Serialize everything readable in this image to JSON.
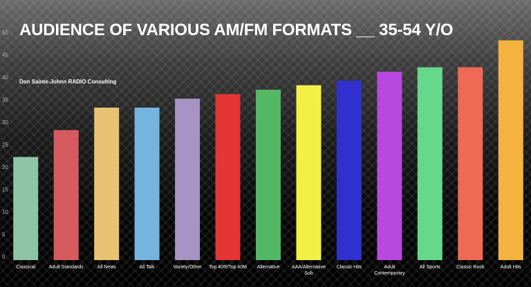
{
  "chart_data": {
    "type": "bar",
    "title": "AUDIENCE OF VARIOUS AM/FM FORMATS __ 35-54 Y/O",
    "subtitle": "Don Sainte-Johnn RADIO Consulting",
    "xlabel": "",
    "ylabel": "",
    "ylim": [
      0,
      50
    ],
    "yticks": [
      0,
      5,
      10,
      15,
      20,
      25,
      30,
      35,
      40,
      45,
      50
    ],
    "grid": false,
    "categories": [
      [
        "Classical"
      ],
      [
        "Adult Standards"
      ],
      [
        "All News"
      ],
      [
        "All Talk"
      ],
      [
        "Variety/Other"
      ],
      [
        "Top 40R/Top 40M"
      ],
      [
        "Alternative"
      ],
      [
        "AAA/Alternative",
        "Sub"
      ],
      [
        "Classic Hits"
      ],
      [
        "Adult",
        "Contemporary"
      ],
      [
        "All Sports"
      ],
      [
        "Classic Rock"
      ],
      [
        "Adult Hits"
      ]
    ],
    "values": [
      23,
      29,
      34,
      34,
      36,
      37,
      38,
      39,
      40,
      42,
      43,
      43,
      49
    ],
    "colors": [
      "#8fc4a6",
      "#d65b5e",
      "#eac274",
      "#75b3e0",
      "#a793c4",
      "#e53535",
      "#53b764",
      "#f3f045",
      "#3030d0",
      "#b948e0",
      "#66d88c",
      "#ee6a55",
      "#f4b33f"
    ]
  }
}
